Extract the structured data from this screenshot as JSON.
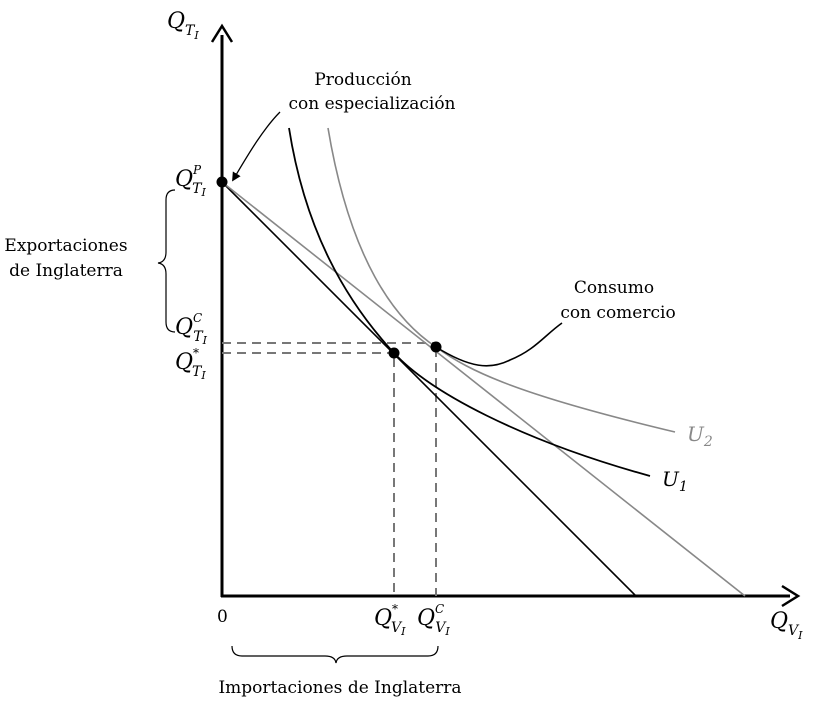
{
  "labels": {
    "y_axis": {
      "main": "Q",
      "sub": "T",
      "subsub": "I"
    },
    "x_axis": {
      "main": "Q",
      "sub": "V",
      "subsub": "I"
    },
    "origin": "0",
    "q_tp": {
      "main": "Q",
      "sup": "P",
      "sub": "T",
      "subsub": "I"
    },
    "q_tc": {
      "main": "Q",
      "sup": "C",
      "sub": "T",
      "subsub": "I"
    },
    "q_tstar": {
      "main": "Q",
      "sup": "*",
      "sub": "T",
      "subsub": "I"
    },
    "q_vstar": {
      "main": "Q",
      "sup": "*",
      "sub": "V",
      "subsub": "I"
    },
    "q_vc": {
      "main": "Q",
      "sup": "C",
      "sub": "V",
      "subsub": "I"
    },
    "u1": {
      "main": "U",
      "sub": "1"
    },
    "u2": {
      "main": "U",
      "sub": "2"
    },
    "produccion_line1": "Producción",
    "produccion_line2": "con especialización",
    "consumo_line1": "Consumo",
    "consumo_line2": "con comercio",
    "exportaciones_line1": "Exportaciones",
    "exportaciones_line2": "de Inglaterra",
    "importaciones": "Importaciones de Inglaterra"
  },
  "colors": {
    "primary": "#000000",
    "secondary": "#888888",
    "dashed": "#777777"
  }
}
